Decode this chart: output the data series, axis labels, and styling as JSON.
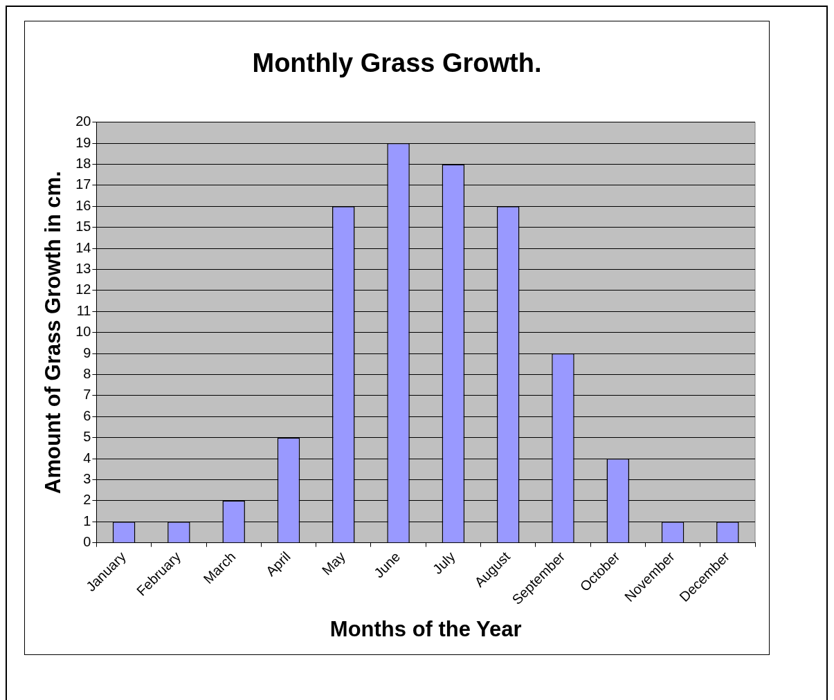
{
  "chart_data": {
    "type": "bar",
    "title": "Monthly Grass Growth.",
    "xlabel": "Months of the Year",
    "ylabel": "Amount of Grass Growth in cm.",
    "categories": [
      "January",
      "February",
      "March",
      "April",
      "May",
      "June",
      "July",
      "August",
      "September",
      "October",
      "November",
      "December"
    ],
    "values": [
      1,
      1,
      2,
      5,
      16,
      19,
      18,
      16,
      9,
      4,
      1,
      1
    ],
    "color": "#9999ff",
    "ylim": [
      0,
      20
    ],
    "yticks": [
      0,
      1,
      2,
      3,
      4,
      5,
      6,
      7,
      8,
      9,
      10,
      11,
      12,
      13,
      14,
      15,
      16,
      17,
      18,
      19,
      20
    ],
    "grid": "y",
    "legend": false
  }
}
